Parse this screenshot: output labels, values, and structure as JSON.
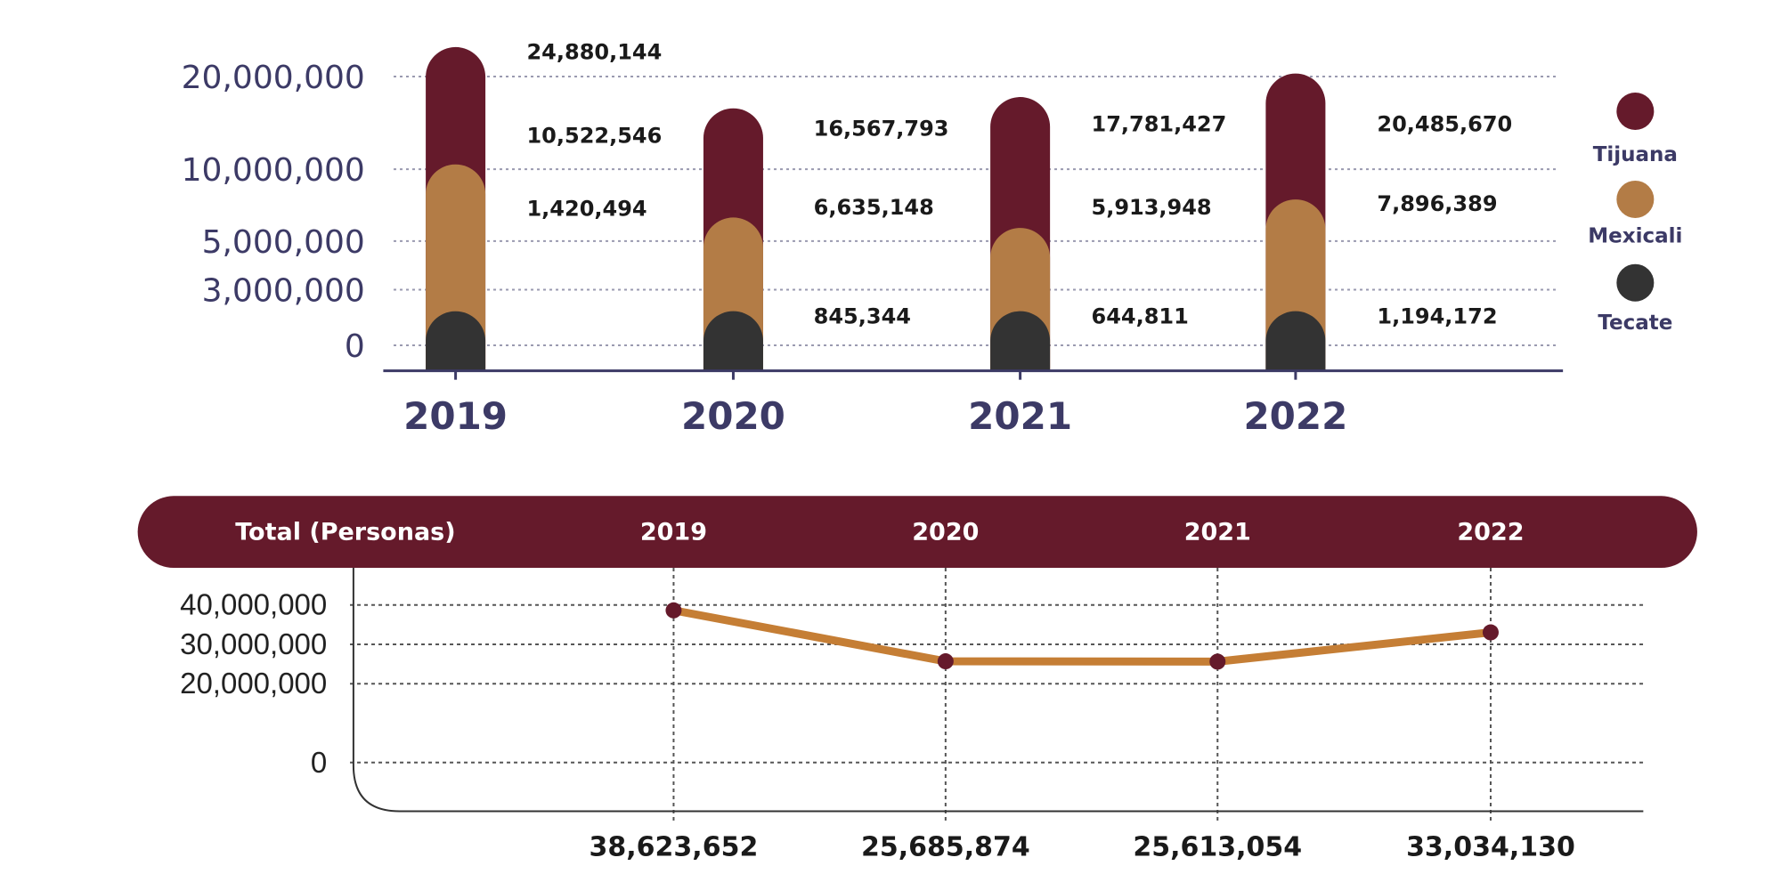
{
  "colors": {
    "tijuana": "#651a2b",
    "mexicali": "#b37c46",
    "tecate": "#333333",
    "axis": "#3c3a66",
    "line": "#c57e35",
    "band": "#651a2b"
  },
  "chart_data": [
    {
      "type": "bar",
      "categories": [
        "2019",
        "2020",
        "2021",
        "2022"
      ],
      "series": [
        {
          "name": "Tijuana",
          "values": [
            24880144,
            16567793,
            17781427,
            20485670
          ]
        },
        {
          "name": "Mexicali",
          "values": [
            10522546,
            6635148,
            5913948,
            7896389
          ]
        },
        {
          "name": "Tecate",
          "values": [
            1420494,
            845344,
            644811,
            1194172
          ]
        }
      ],
      "value_labels": [
        [
          "24,880,144",
          "10,522,546",
          "1,420,494"
        ],
        [
          "16,567,793",
          "6,635,148",
          "845,344"
        ],
        [
          "17,781,427",
          "5,913,948",
          "644,811"
        ],
        [
          "20,485,670",
          "7,896,389",
          "1,194,172"
        ]
      ],
      "ytick_values": [
        0,
        3000000,
        5000000,
        10000000,
        20000000
      ],
      "ytick_labels": [
        "0",
        "3,000,000",
        "5,000,000",
        "10,000,000",
        "20,000,000"
      ],
      "legend": [
        "Tijuana",
        "Mexicali",
        "Tecate"
      ],
      "legend_placement": "right",
      "grid": true
    },
    {
      "type": "line",
      "header": "Total (Personas)",
      "categories": [
        "2019",
        "2020",
        "2021",
        "2022"
      ],
      "values": [
        38623652,
        25685874,
        25613054,
        33034130
      ],
      "value_labels": [
        "38,623,652",
        "25,685,874",
        "25,613,054",
        "33,034,130"
      ],
      "ytick_values": [
        0,
        20000000,
        30000000,
        40000000
      ],
      "ytick_labels": [
        "0",
        "20,000,000",
        "30,000,000",
        "40,000,000"
      ],
      "grid": true
    }
  ]
}
